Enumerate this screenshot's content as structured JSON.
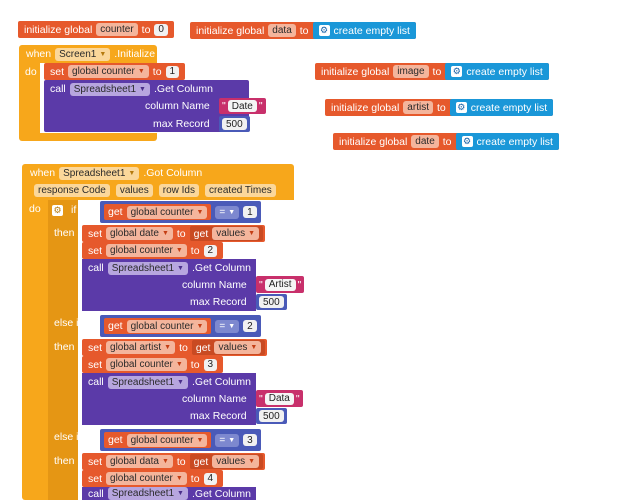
{
  "globals": [
    {
      "pre": "initialize global",
      "name": "counter",
      "to": "to",
      "value": "0"
    },
    {
      "pre": "initialize global",
      "name": "data",
      "to": "to",
      "value": "create empty list"
    },
    {
      "pre": "initialize global",
      "name": "image",
      "to": "to",
      "value": "create empty list"
    },
    {
      "pre": "initialize global",
      "name": "artist",
      "to": "to",
      "value": "create empty list"
    },
    {
      "pre": "initialize global",
      "name": "date",
      "to": "to",
      "value": "create empty list"
    }
  ],
  "init_event": {
    "when": "when",
    "component": "Screen1",
    "event": ".Initialize",
    "do": "do",
    "set": "set",
    "set_var": "global counter",
    "set_to": "to",
    "set_val": "1",
    "call": "call",
    "call_comp": "Spreadsheet1",
    "call_method": ".Get Column",
    "col_label": "column Name",
    "col_q1": "\"",
    "col_val": "Date",
    "col_q2": "\"",
    "max_label": "max Record",
    "max_val": "500"
  },
  "got_event": {
    "when": "when",
    "component": "Spreadsheet1",
    "event": ".Got Column",
    "params": [
      "response Code",
      "values",
      "row Ids",
      "created Times"
    ],
    "do": "do",
    "if": "if",
    "then": "then",
    "else_if": "else if",
    "get": "get",
    "get_var": "global counter",
    "eq": "=",
    "branch1": {
      "cond": "1",
      "set": "set",
      "var": "global date",
      "to": "to",
      "get": "get",
      "val": "values",
      "set2": "set",
      "var2": "global counter",
      "to2": "to",
      "val2": "2",
      "call": "call",
      "comp": "Spreadsheet1",
      "method": ".Get Column",
      "col_label": "column Name",
      "col": "Artist",
      "max_label": "max Record",
      "max": "500"
    },
    "branch2": {
      "cond": "2",
      "set": "set",
      "var": "global artist",
      "to": "to",
      "get": "get",
      "val": "values",
      "set2": "set",
      "var2": "global counter",
      "to2": "to",
      "val2": "3",
      "call": "call",
      "comp": "Spreadsheet1",
      "method": ".Get Column",
      "col_label": "column Name",
      "col": "Data",
      "max_label": "max Record",
      "max": "500"
    },
    "branch3": {
      "cond": "3",
      "set": "set",
      "var": "global data",
      "to": "to",
      "get": "get",
      "val": "values",
      "set2": "set",
      "var2": "global counter",
      "to2": "to",
      "val2": "4",
      "call": "call",
      "comp": "Spreadsheet1",
      "method": ".Get Column"
    }
  }
}
